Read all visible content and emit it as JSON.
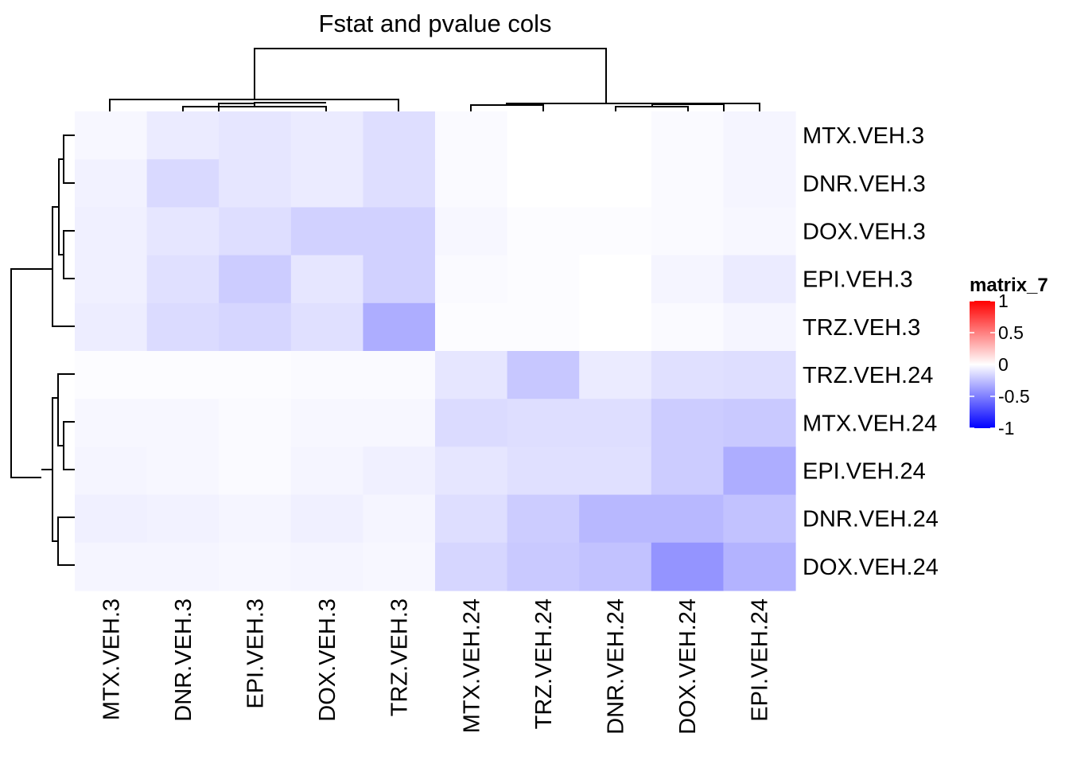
{
  "chart_data": {
    "type": "heatmap",
    "title": "Fstat and pvalue cols",
    "columns": [
      "MTX.VEH.3",
      "DNR.VEH.3",
      "EPI.VEH.3",
      "DOX.VEH.3",
      "TRZ.VEH.3",
      "MTX.VEH.24",
      "TRZ.VEH.24",
      "DNR.VEH.24",
      "DOX.VEH.24",
      "EPI.VEH.24"
    ],
    "rows": [
      "MTX.VEH.3",
      "DNR.VEH.3",
      "DOX.VEH.3",
      "EPI.VEH.3",
      "TRZ.VEH.3",
      "TRZ.VEH.24",
      "MTX.VEH.24",
      "EPI.VEH.24",
      "DNR.VEH.24",
      "DOX.VEH.24"
    ],
    "values": [
      [
        -0.03,
        -0.08,
        -0.1,
        -0.08,
        -0.13,
        -0.02,
        0.0,
        0.0,
        -0.02,
        -0.04
      ],
      [
        -0.05,
        -0.15,
        -0.1,
        -0.08,
        -0.13,
        -0.02,
        0.0,
        0.0,
        -0.02,
        -0.04
      ],
      [
        -0.06,
        -0.1,
        -0.13,
        -0.18,
        -0.18,
        -0.03,
        -0.01,
        -0.01,
        -0.02,
        -0.03
      ],
      [
        -0.06,
        -0.12,
        -0.2,
        -0.1,
        -0.18,
        -0.02,
        -0.01,
        0.0,
        -0.04,
        -0.08
      ],
      [
        -0.07,
        -0.14,
        -0.16,
        -0.12,
        -0.32,
        -0.01,
        -0.01,
        0.0,
        -0.02,
        -0.04
      ],
      [
        -0.01,
        -0.01,
        -0.01,
        -0.02,
        -0.02,
        -0.1,
        -0.22,
        -0.08,
        -0.12,
        -0.13
      ],
      [
        -0.03,
        -0.03,
        -0.02,
        -0.03,
        -0.03,
        -0.14,
        -0.13,
        -0.13,
        -0.2,
        -0.21
      ],
      [
        -0.04,
        -0.03,
        -0.02,
        -0.04,
        -0.06,
        -0.1,
        -0.12,
        -0.12,
        -0.2,
        -0.32
      ],
      [
        -0.06,
        -0.05,
        -0.04,
        -0.06,
        -0.04,
        -0.13,
        -0.2,
        -0.28,
        -0.28,
        -0.24
      ],
      [
        -0.04,
        -0.04,
        -0.03,
        -0.04,
        -0.03,
        -0.16,
        -0.21,
        -0.24,
        -0.42,
        -0.3
      ]
    ],
    "legend": {
      "title": "matrix_7",
      "placement": "right",
      "ticks": [
        1,
        0.5,
        0,
        -0.5,
        -1
      ],
      "tick_labels": [
        "1",
        "0.5",
        "0",
        "-0.5",
        "-1"
      ],
      "range": [
        -1,
        1
      ],
      "colors": {
        "low": "#0000ff",
        "mid": "#ffffff",
        "high": "#ff0000"
      }
    },
    "row_dendrogram": true,
    "column_dendrogram": true
  }
}
